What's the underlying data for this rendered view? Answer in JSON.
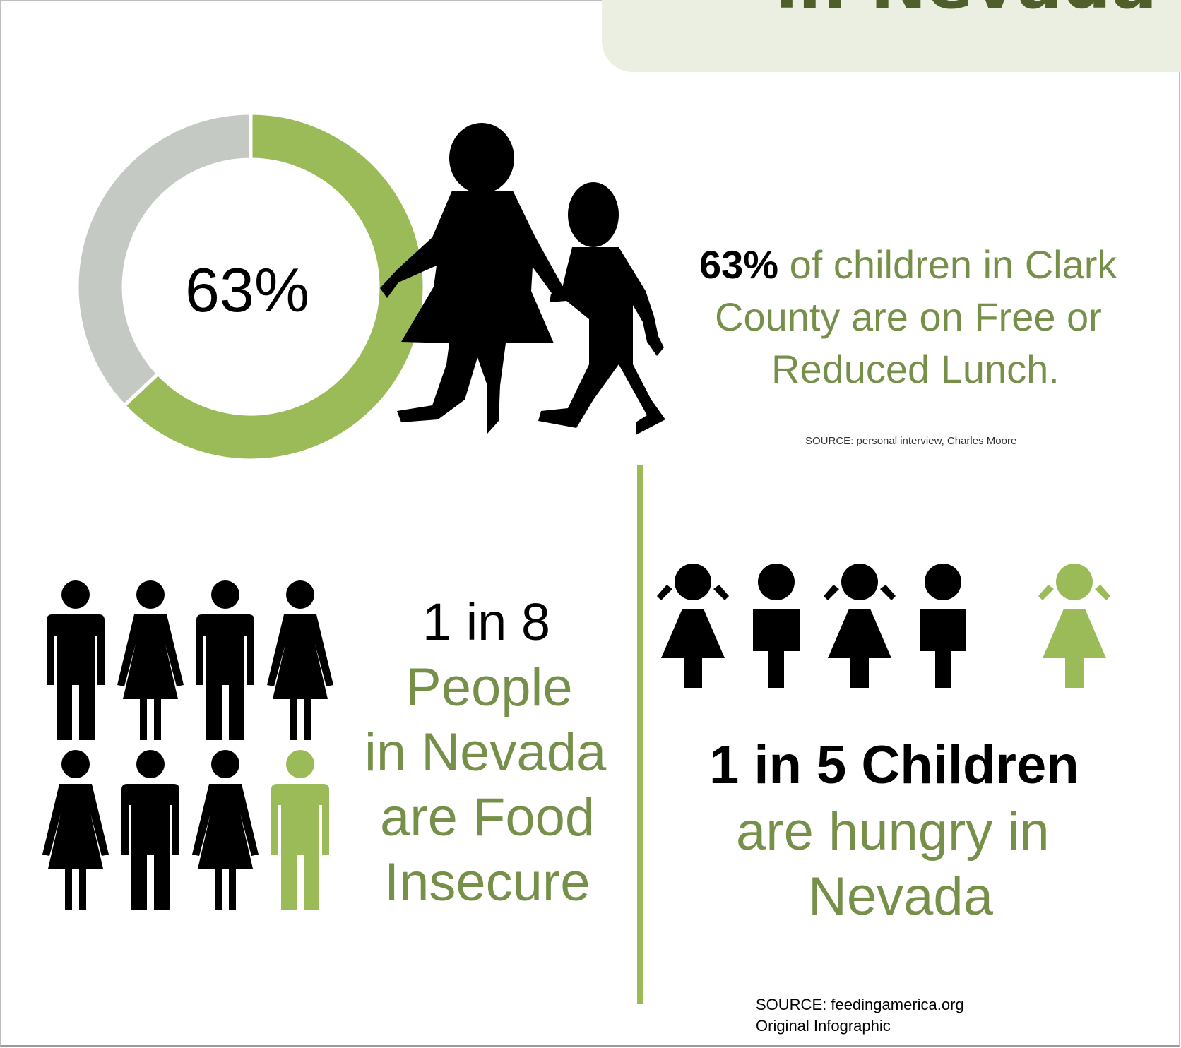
{
  "title": "in Nevada",
  "chart_data": {
    "type": "pie",
    "slices": [
      {
        "label": "Free or Reduced Lunch",
        "value": 63,
        "color": "#9bbb59"
      },
      {
        "label": "Other",
        "value": 37,
        "color": "#c4c9c4"
      }
    ],
    "center_label": "63%"
  },
  "stat1": {
    "number": "63%",
    "text_line1": "of children in Clark",
    "text_line2": "County are on Free or",
    "text_line3": "Reduced Lunch.",
    "source": "SOURCE: personal interview, Charles Moore"
  },
  "stat2": {
    "headline": "1 in 8",
    "lines": [
      "People",
      "in Nevada",
      "are Food",
      "Insecure"
    ]
  },
  "stat3": {
    "headline": "1 in 5 Children",
    "lines": [
      "are hungry in",
      "Nevada"
    ]
  },
  "footer": {
    "source": "SOURCE: feedingamerica.org",
    "note": "Original Infographic"
  },
  "colors": {
    "accent": "#9bbb59",
    "text_green": "#76904a",
    "title_green": "#4f5f2a",
    "title_bg": "#ebefe2",
    "gray": "#c4c9c4"
  },
  "icons": {
    "adults": [
      "man-icon",
      "woman-icon",
      "man-icon",
      "woman-icon",
      "woman-icon",
      "man-icon",
      "woman-icon",
      "man-icon"
    ],
    "adults_highlight_index": 7,
    "children": [
      "girl-icon",
      "boy-icon",
      "girl-icon",
      "boy-icon",
      "girl-icon"
    ],
    "children_highlight_index": 4
  }
}
